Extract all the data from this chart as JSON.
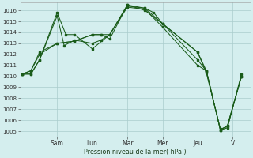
{
  "background_color": "#d4eeee",
  "grid_color": "#aacccc",
  "line_color": "#1a5c1a",
  "xlabel": "Pression niveau de la mer( hPa )",
  "ylim": [
    1004.5,
    1016.7
  ],
  "yticks": [
    1005,
    1006,
    1007,
    1008,
    1009,
    1010,
    1011,
    1012,
    1013,
    1014,
    1015,
    1016
  ],
  "x_day_ticks": [
    2.0,
    4.0,
    6.0,
    8.0,
    10.0,
    12.0
  ],
  "x_day_labels": [
    "Sam",
    "Lun",
    "Mar",
    "Mer",
    "Jeu",
    "V"
  ],
  "xlim": [
    -0.1,
    13.0
  ],
  "series": [
    {
      "x": [
        0,
        0.5,
        1.0,
        2.0,
        2.5,
        3.0,
        4.0,
        5.0,
        6.0,
        7.0,
        8.0,
        10.0,
        10.5,
        11.3,
        11.7,
        12.5
      ],
      "y": [
        1010.2,
        1010.2,
        1011.5,
        1015.8,
        1013.8,
        1013.8,
        1012.5,
        1013.8,
        1016.3,
        1016.1,
        1014.5,
        1011.0,
        1010.5,
        1005.1,
        1005.3,
        1010.2
      ]
    },
    {
      "x": [
        0,
        0.5,
        1.0,
        2.0,
        2.4,
        3.0,
        4.0,
        4.5,
        5.0,
        6.0,
        7.0,
        8.0,
        10.0,
        10.5,
        11.3,
        11.7,
        12.5
      ],
      "y": [
        1010.2,
        1010.2,
        1011.5,
        1015.5,
        1012.8,
        1013.3,
        1013.0,
        1013.3,
        1013.8,
        1016.4,
        1016.2,
        1014.8,
        1012.2,
        1010.3,
        1005.2,
        1005.4,
        1010.0
      ]
    },
    {
      "x": [
        0,
        0.5,
        1.0,
        2.0,
        3.0,
        4.0,
        4.5,
        5.0,
        6.0,
        7.0,
        8.0,
        10.0,
        10.5,
        11.3,
        11.7,
        12.5
      ],
      "y": [
        1010.2,
        1010.5,
        1012.0,
        1013.0,
        1013.2,
        1013.8,
        1013.8,
        1013.8,
        1016.5,
        1016.0,
        1014.8,
        1011.5,
        1010.5,
        1005.1,
        1005.5,
        1010.0
      ]
    },
    {
      "x": [
        0,
        0.5,
        1.0,
        2.0,
        3.0,
        4.0,
        4.5,
        5.0,
        6.0,
        7.0,
        7.5,
        8.0,
        10.0,
        10.5,
        11.3,
        11.7,
        12.5
      ],
      "y": [
        1010.2,
        1010.5,
        1012.2,
        1013.0,
        1013.2,
        1013.8,
        1013.8,
        1013.4,
        1016.5,
        1016.2,
        1015.8,
        1014.8,
        1012.2,
        1010.5,
        1005.1,
        1005.5,
        1010.0
      ]
    }
  ]
}
